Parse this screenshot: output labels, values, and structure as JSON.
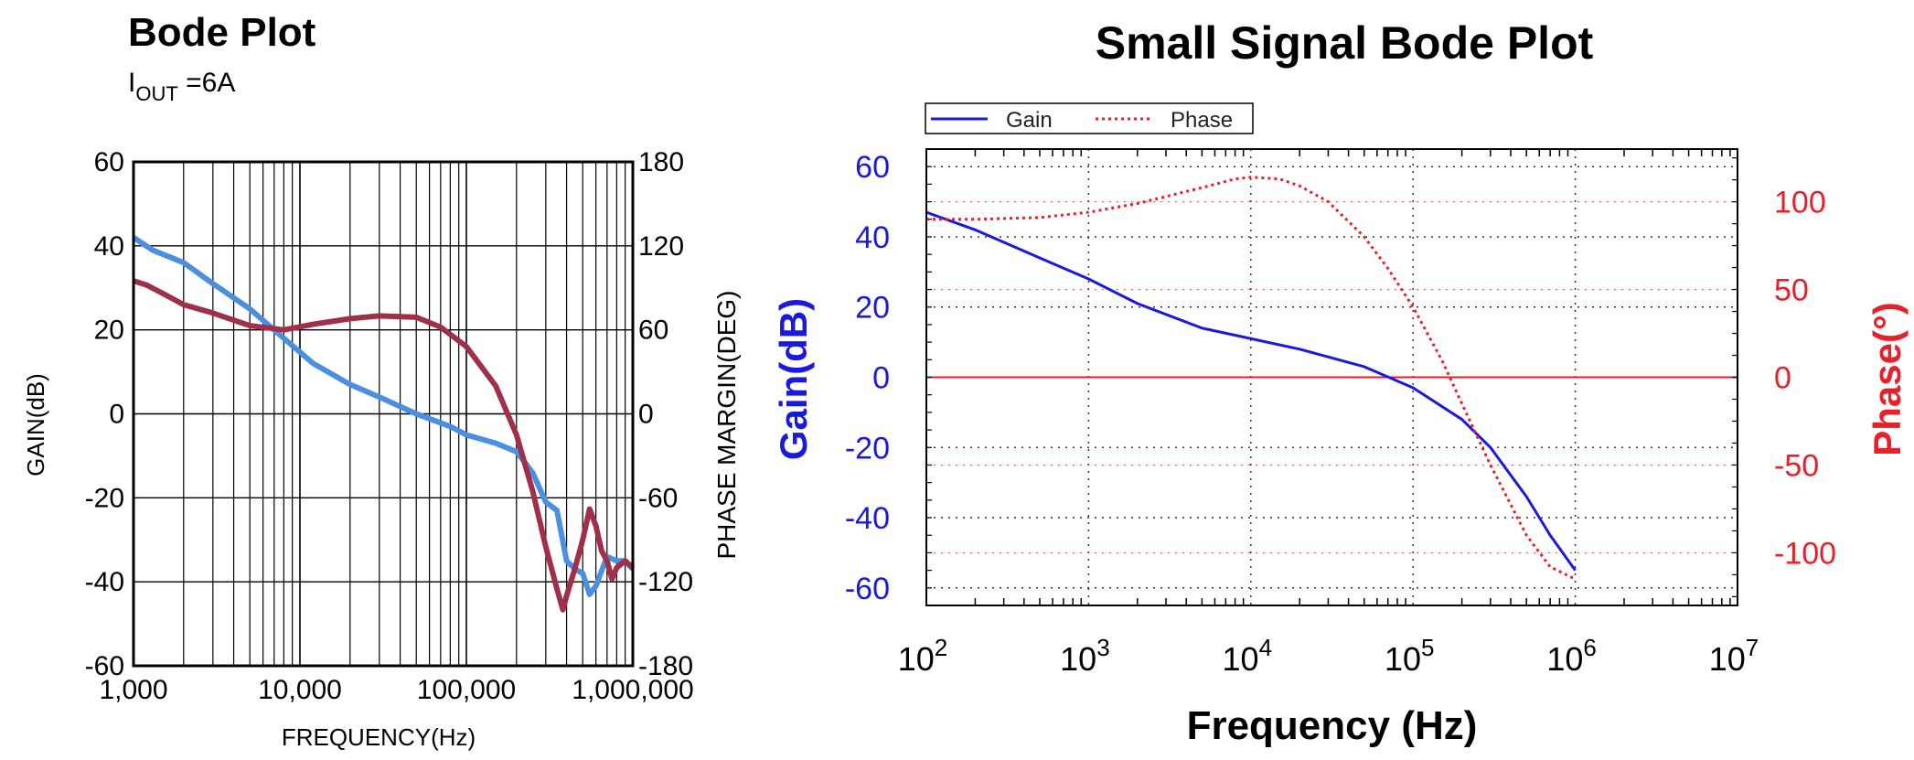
{
  "chart_data": [
    {
      "type": "line",
      "title": "Bode Plot",
      "subtitle_main": "I",
      "subtitle_sub": "OUT",
      "subtitle_rest": " =6A",
      "xlabel": "FREQUENCY(Hz)",
      "ylabel": "GAIN(dB)",
      "y2label": "PHASE MARGIN(DEG)",
      "x_scale": "log",
      "xlim": [
        1000,
        1000000
      ],
      "ylim": [
        -60,
        60
      ],
      "y2lim": [
        -180,
        180
      ],
      "grid": true,
      "x_ticks": [
        "1,000",
        "10,000",
        "100,000",
        "1,000,000"
      ],
      "y_ticks": [
        "60",
        "40",
        "20",
        "0",
        "-20",
        "-40",
        "-60"
      ],
      "y2_ticks": [
        "180",
        "120",
        "60",
        "0",
        "-60",
        "-120",
        "-180"
      ],
      "colors": {
        "gain": "#4a8fe0",
        "phase": "#a0304a"
      },
      "series": [
        {
          "axis": "left",
          "x": [
            1000,
            1300,
            2000,
            3000,
            5000,
            8000,
            12000,
            20000,
            30000,
            50000,
            80000,
            100000,
            150000,
            200000,
            250000,
            300000,
            350000,
            400000,
            450000,
            500000,
            550000,
            600000,
            700000,
            800000,
            900000,
            1000000
          ],
          "values": [
            42,
            39,
            36,
            31,
            25,
            18,
            12,
            7,
            4,
            0,
            -3,
            -5,
            -7,
            -9,
            -14,
            -21,
            -23,
            -35,
            -37,
            -38,
            -43,
            -41,
            -34,
            -35,
            -35,
            -37
          ]
        },
        {
          "axis": "right",
          "x": [
            1000,
            1200,
            1500,
            2000,
            3000,
            5000,
            8000,
            12000,
            20000,
            30000,
            50000,
            70000,
            100000,
            150000,
            200000,
            250000,
            300000,
            350000,
            380000,
            400000,
            450000,
            500000,
            550000,
            600000,
            650000,
            700000,
            750000,
            800000,
            900000,
            1000000
          ],
          "values": [
            95,
            92,
            86,
            78,
            72,
            63,
            60,
            64,
            68,
            70,
            69,
            62,
            48,
            20,
            -15,
            -55,
            -95,
            -125,
            -140,
            -130,
            -110,
            -90,
            -68,
            -80,
            -98,
            -105,
            -118,
            -110,
            -105,
            -110
          ]
        }
      ]
    },
    {
      "type": "line",
      "title": "Small Signal Bode Plot",
      "xlabel": "Frequency (Hz)",
      "ylabel": "Gain(dB)",
      "y2label": "Phase(°)",
      "x_scale": "log",
      "xlim": [
        100,
        10000000
      ],
      "ylim": [
        -65,
        65
      ],
      "y2lim": [
        -130,
        130
      ],
      "grid": true,
      "legend_position": "top-left",
      "x_tick_base": [
        "10",
        "10",
        "10",
        "10",
        "10",
        "10"
      ],
      "x_tick_exp": [
        "2",
        "3",
        "4",
        "5",
        "6",
        "7"
      ],
      "y_ticks": [
        "60",
        "40",
        "20",
        "0",
        "-20",
        "-40",
        "-60"
      ],
      "y2_ticks": [
        "100",
        "50",
        "0",
        "-50",
        "-100"
      ],
      "colors": {
        "gain": "#1a1adf",
        "phase": "#e8202a",
        "gain_axis": "#1a1adf",
        "phase_axis": "#e8202a"
      },
      "series": [
        {
          "name": "Gain",
          "axis": "left",
          "x": [
            100,
            200,
            500,
            1000,
            2000,
            5000,
            10000,
            20000,
            50000,
            100000,
            200000,
            300000,
            500000,
            700000,
            1000000
          ],
          "values": [
            47,
            42,
            34,
            28,
            21,
            14,
            11,
            8,
            3,
            -3,
            -12,
            -20,
            -34,
            -45,
            -55
          ]
        },
        {
          "name": "Phase",
          "axis": "right",
          "x": [
            100,
            200,
            500,
            1000,
            2000,
            5000,
            8000,
            10000,
            15000,
            20000,
            30000,
            50000,
            70000,
            100000,
            150000,
            200000,
            300000,
            500000,
            700000,
            1000000
          ],
          "values": [
            90,
            90,
            91,
            94,
            99,
            108,
            113,
            114,
            113,
            109,
            100,
            80,
            62,
            40,
            10,
            -15,
            -50,
            -90,
            -108,
            -115
          ]
        }
      ]
    }
  ]
}
